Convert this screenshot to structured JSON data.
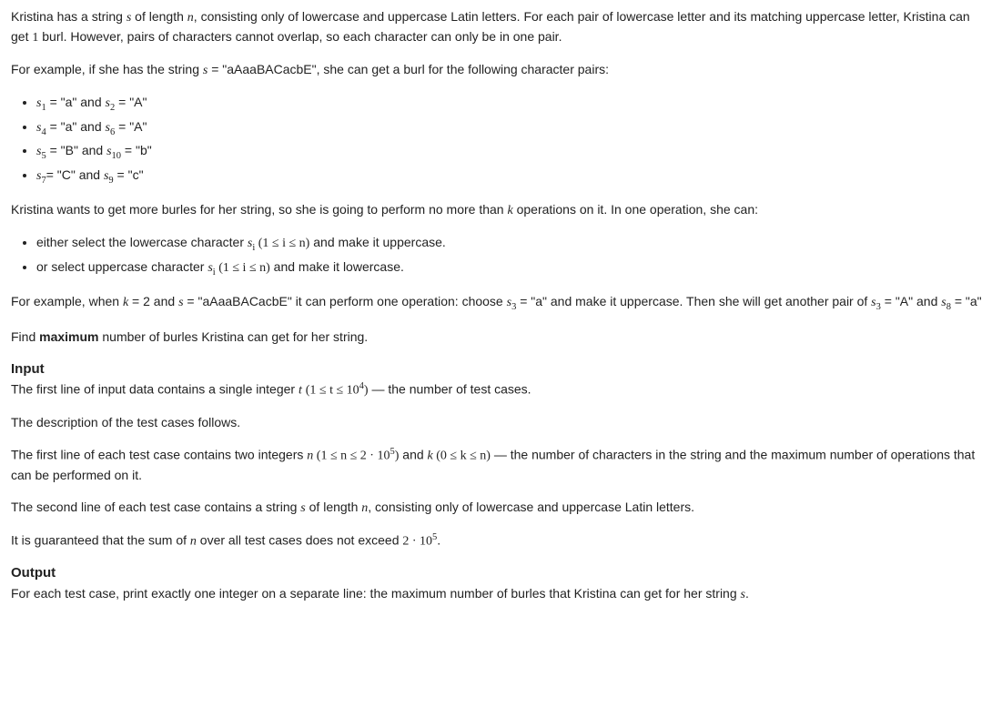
{
  "p1": "Kristina has a string ",
  "p1b": " of length ",
  "p1c": ", consisting only of lowercase and uppercase Latin letters. For each pair of lowercase letter and its matching uppercase letter, Kristina can get ",
  "p1d": " burl. However, pairs of characters cannot overlap, so each character can only be in one pair.",
  "p2a": "For example, if she has the string ",
  "p2b": " = \"aAaaBACacbE\", she can get a burl for the following character pairs:",
  "li1a": " = \"a\" and ",
  "li1b": " = \"A\"",
  "li2a": " = \"a\" and ",
  "li2b": " = \"A\"",
  "li3a": " = \"B\" and ",
  "li3b": " = \"b\"",
  "li4a": "= \"C\" and ",
  "li4b": " = \"c\"",
  "p3a": "Kristina wants to get more burles for her string, so she is going to perform no more than ",
  "p3b": " operations on it. In one operation, she can:",
  "op1a": "either select the lowercase character ",
  "op1b": " and make it uppercase.",
  "op2a": "or select uppercase character ",
  "op2b": " and make it lowercase.",
  "p4a": "For example, when ",
  "p4b": " = 2 and ",
  "p4c": " = \"aAaaBACacbE\" it can perform one operation: choose ",
  "p4d": " = \"a\" and make it uppercase. Then she will get another pair of ",
  "p4e": " = \"A\" and ",
  "p4f": " = \"a\"",
  "p5a": "Find ",
  "p5b": "maximum",
  "p5c": " number of burles Kristina can get for her string.",
  "hInput": "Input",
  "in1a": "The first line of input data contains a single integer ",
  "in1b": " — the number of test cases.",
  "in2": "The description of the test cases follows.",
  "in3a": "The first line of each test case contains two integers ",
  "in3b": " and ",
  "in3c": " — the number of characters in the string and the maximum number of operations that can be performed on it.",
  "in4a": "The second line of each test case contains a string ",
  "in4b": " of length ",
  "in4c": ", consisting only of lowercase and uppercase Latin letters.",
  "in5a": "It is guaranteed that the sum of ",
  "in5b": " over all test cases does not exceed ",
  "hOutput": "Output",
  "out1a": "For each test case, print exactly one integer on a separate line: the maximum number of burles that Kristina can get for her string ",
  "out1b": ".",
  "var_s": "s",
  "var_n": "n",
  "var_k": "k",
  "var_t": "t",
  "var_i": "i",
  "one": "1",
  "c_t": "(1 ≤ t ≤ 10",
  "c_t2": ")",
  "c_n": " (1 ≤ n ≤ 2 · 10",
  "c_n2": ")",
  "c_k": " (0 ≤ k ≤ n)",
  "c_i": " (1 ≤ i ≤ n)",
  "sum_n": "2 · 10",
  "exp4": "4",
  "exp5": "5",
  "sub1": "1",
  "sub2": "2",
  "sub3": "3",
  "sub4": "4",
  "sub5": "5",
  "sub6": "6",
  "sub7": "7",
  "sub8": "8",
  "sub9": "9",
  "sub10": "10",
  "dot": "."
}
